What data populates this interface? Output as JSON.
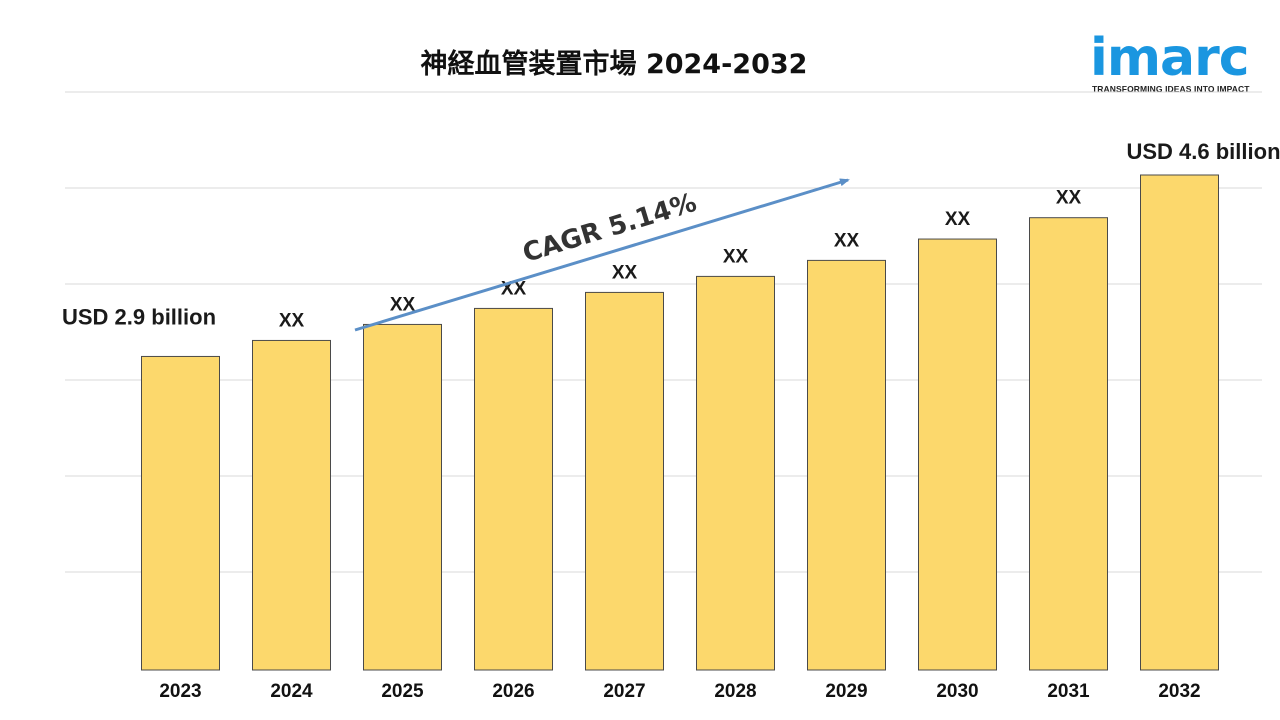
{
  "header": {
    "title": "神経血管装置市場 2024-2032"
  },
  "logo": {
    "word": "imarc",
    "tagline": "TRANSFORMING IDEAS INTO IMPACT",
    "color": "#1a96e0"
  },
  "chart_data": {
    "type": "bar",
    "categories": [
      "2023",
      "2024",
      "2025",
      "2026",
      "2027",
      "2028",
      "2029",
      "2030",
      "2031",
      "2032"
    ],
    "values": [
      2.9,
      3.05,
      3.2,
      3.35,
      3.5,
      3.65,
      3.8,
      4.0,
      4.2,
      4.6
    ],
    "data_labels": [
      "USD 2.9 billion",
      "XX",
      "XX",
      "XX",
      "XX",
      "XX",
      "XX",
      "XX",
      "XX",
      "USD 4.6 billion"
    ],
    "annotation": "CAGR 5.14%",
    "bar_color": "#fcd86c",
    "bar_border_color": "#4a4a4a",
    "arrow_color": "#5b8fc7",
    "grid": true,
    "legend": "none"
  }
}
